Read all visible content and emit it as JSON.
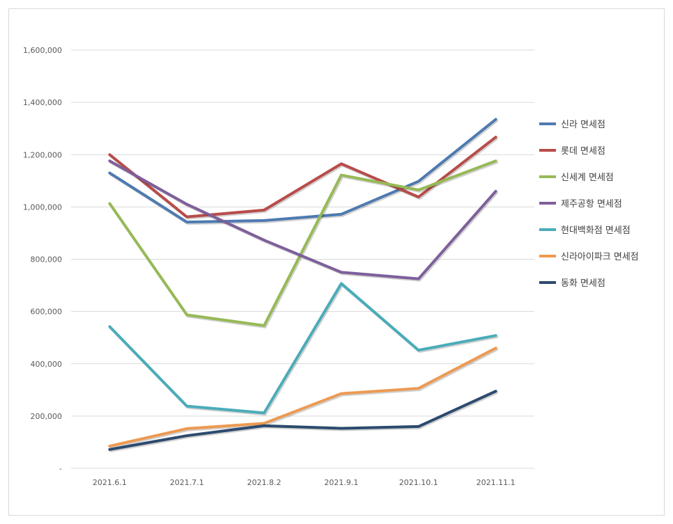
{
  "chart_data": {
    "type": "line",
    "categories": [
      "2021.6.1",
      "2021.7.1",
      "2021.8.2",
      "2021.9.1",
      "2021.10.1",
      "2021.11.1"
    ],
    "ylim": [
      0,
      1600000
    ],
    "y_ticks": [
      0,
      200000,
      400000,
      600000,
      800000,
      1000000,
      1200000,
      1400000,
      1600000
    ],
    "y_tick_labels": [
      "-",
      "200,000",
      "400,000",
      "600,000",
      "800,000",
      "1,000,000",
      "1,200,000",
      "1,400,000",
      "1,600,000"
    ],
    "grid": true,
    "legend_position": "right",
    "series": [
      {
        "name": "신라 면세점",
        "color": "#4E7AB0",
        "values": [
          1130000,
          942000,
          948000,
          972000,
          1098000,
          1335000
        ]
      },
      {
        "name": "롯데 면세점",
        "color": "#B84C4A",
        "values": [
          1200000,
          962000,
          988000,
          1165000,
          1038000,
          1267000
        ]
      },
      {
        "name": "신세계 면세점",
        "color": "#97B956",
        "values": [
          1013000,
          587000,
          546000,
          1122000,
          1065000,
          1176000
        ]
      },
      {
        "name": "제주공항 면세점",
        "color": "#7E5F9A",
        "values": [
          1176000,
          1010000,
          873000,
          750000,
          725000,
          1060000
        ]
      },
      {
        "name": "현대백화점 면세점",
        "color": "#4AACB9",
        "values": [
          542000,
          238000,
          212000,
          707000,
          452000,
          508000
        ]
      },
      {
        "name": "신라아이파크 면세점",
        "color": "#EC9A52",
        "values": [
          85000,
          152000,
          172000,
          286000,
          306000,
          460000
        ]
      },
      {
        "name": "동화 면세점",
        "color": "#2C4A6E",
        "values": [
          72000,
          125000,
          163000,
          153000,
          160000,
          295000
        ]
      }
    ]
  }
}
